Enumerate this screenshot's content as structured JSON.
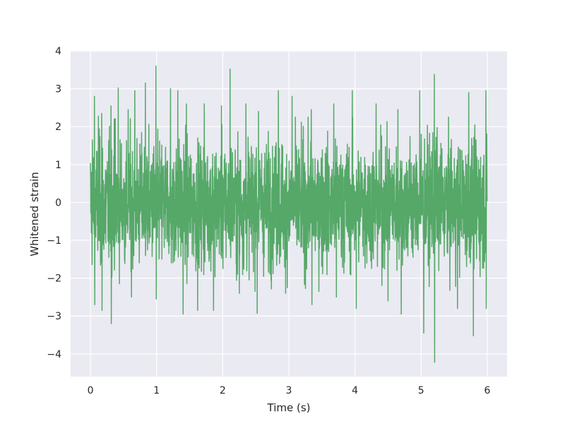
{
  "chart_data": {
    "type": "line",
    "title": "",
    "xlabel": "Time (s)",
    "ylabel": "Whitened strain",
    "xlim": [
      -0.3,
      6.3
    ],
    "ylim": [
      -4.6,
      4.0
    ],
    "x_ticks": [
      0,
      1,
      2,
      3,
      4,
      5,
      6
    ],
    "y_ticks": [
      -4,
      -3,
      -2,
      -1,
      0,
      1,
      2,
      3,
      4
    ],
    "x_tick_labels": [
      "0",
      "1",
      "2",
      "3",
      "4",
      "5",
      "6"
    ],
    "y_tick_labels": [
      "−4",
      "−3",
      "−2",
      "−1",
      "0",
      "1",
      "2",
      "3",
      "4"
    ],
    "grid": true,
    "legend": "none",
    "background_color": "#eaeaf2",
    "series": [
      {
        "color": "#55a868",
        "x_start": 0,
        "x_end": 6,
        "n_points": 2400,
        "typical_range": [
          -2.0,
          1.9
        ],
        "peaks": [
          {
            "x": 0.03,
            "y": 1.65
          },
          {
            "x": 0.06,
            "y": 2.8
          },
          {
            "x": 0.12,
            "y": 2.28
          },
          {
            "x": 0.17,
            "y": 2.35
          },
          {
            "x": 0.31,
            "y": 2.55
          },
          {
            "x": 0.36,
            "y": 2.2
          },
          {
            "x": 0.42,
            "y": 3.02
          },
          {
            "x": 0.57,
            "y": 2.45
          },
          {
            "x": 0.67,
            "y": 2.95
          },
          {
            "x": 0.83,
            "y": 3.15
          },
          {
            "x": 0.99,
            "y": 3.6
          },
          {
            "x": 1.21,
            "y": 3.0
          },
          {
            "x": 1.32,
            "y": 2.95
          },
          {
            "x": 1.45,
            "y": 2.6
          },
          {
            "x": 1.72,
            "y": 2.6
          },
          {
            "x": 1.98,
            "y": 2.55
          },
          {
            "x": 2.11,
            "y": 3.52
          },
          {
            "x": 2.35,
            "y": 2.6
          },
          {
            "x": 2.54,
            "y": 2.4
          },
          {
            "x": 2.84,
            "y": 2.95
          },
          {
            "x": 3.05,
            "y": 2.8
          },
          {
            "x": 3.34,
            "y": 2.45
          },
          {
            "x": 3.68,
            "y": 2.6
          },
          {
            "x": 3.96,
            "y": 2.95
          },
          {
            "x": 4.32,
            "y": 2.6
          },
          {
            "x": 4.65,
            "y": 2.45
          },
          {
            "x": 4.98,
            "y": 2.95
          },
          {
            "x": 5.2,
            "y": 3.38
          },
          {
            "x": 5.72,
            "y": 2.9
          },
          {
            "x": 5.98,
            "y": 2.95
          }
        ],
        "troughs": [
          {
            "x": 0.06,
            "y": -2.7
          },
          {
            "x": 0.17,
            "y": -2.85
          },
          {
            "x": 0.31,
            "y": -3.2
          },
          {
            "x": 0.62,
            "y": -2.5
          },
          {
            "x": 0.99,
            "y": -2.55
          },
          {
            "x": 1.4,
            "y": -2.95
          },
          {
            "x": 1.62,
            "y": -2.85
          },
          {
            "x": 1.86,
            "y": -2.85
          },
          {
            "x": 2.25,
            "y": -2.4
          },
          {
            "x": 2.52,
            "y": -2.93
          },
          {
            "x": 2.95,
            "y": -2.4
          },
          {
            "x": 3.35,
            "y": -2.7
          },
          {
            "x": 3.72,
            "y": -2.5
          },
          {
            "x": 4.02,
            "y": -2.8
          },
          {
            "x": 4.5,
            "y": -2.6
          },
          {
            "x": 4.7,
            "y": -2.95
          },
          {
            "x": 5.04,
            "y": -3.45
          },
          {
            "x": 5.2,
            "y": -4.22
          },
          {
            "x": 5.55,
            "y": -2.8
          },
          {
            "x": 5.79,
            "y": -3.52
          },
          {
            "x": 5.98,
            "y": -2.8
          }
        ]
      }
    ]
  }
}
